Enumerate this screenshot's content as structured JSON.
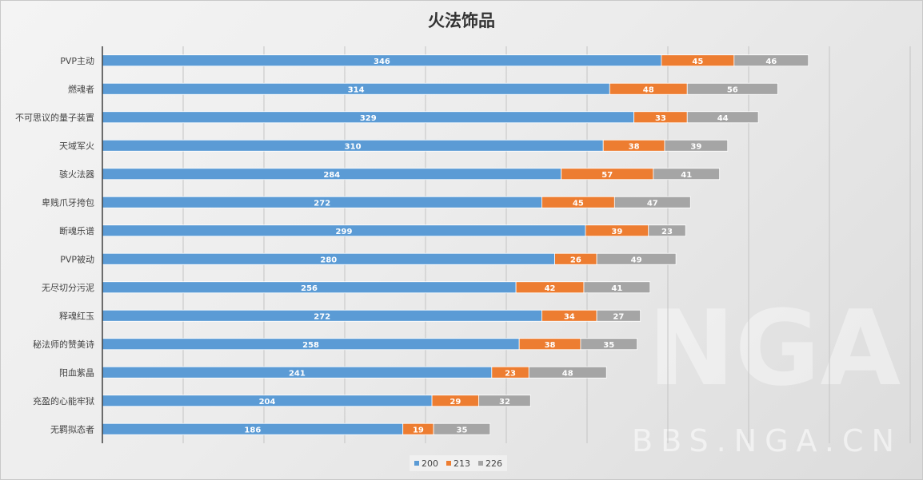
{
  "chart_data": {
    "type": "bar",
    "orientation": "horizontal",
    "stacked": true,
    "title": "火法饰品",
    "categories": [
      "PVP主动",
      "燃魂者",
      "不可思议的量子装置",
      "天域军火",
      "骇火法器",
      "卑贱爪牙挎包",
      "断魂乐谱",
      "PVP被动",
      "无尽切分污泥",
      "释魂红玉",
      "秘法师的赞美诗",
      "阳血紫晶",
      "充盈的心能牢狱",
      "无羁拟态者"
    ],
    "series": [
      {
        "name": "200",
        "color": "#5b9bd5",
        "values": [
          346,
          314,
          329,
          310,
          284,
          272,
          299,
          280,
          256,
          272,
          258,
          241,
          204,
          186
        ]
      },
      {
        "name": "213",
        "color": "#ed7d31",
        "values": [
          45,
          48,
          33,
          38,
          57,
          45,
          39,
          26,
          42,
          34,
          38,
          23,
          29,
          19
        ]
      },
      {
        "name": "226",
        "color": "#a5a5a5",
        "values": [
          46,
          56,
          44,
          39,
          41,
          47,
          23,
          49,
          41,
          27,
          35,
          48,
          32,
          35
        ]
      }
    ],
    "xlim": [
      0,
      500
    ],
    "x_grid_step": 50,
    "grid": true,
    "legend": "bottom",
    "data_labels": true
  },
  "watermark": "BBS.NGA.CN",
  "watermark_logo": "NGA"
}
